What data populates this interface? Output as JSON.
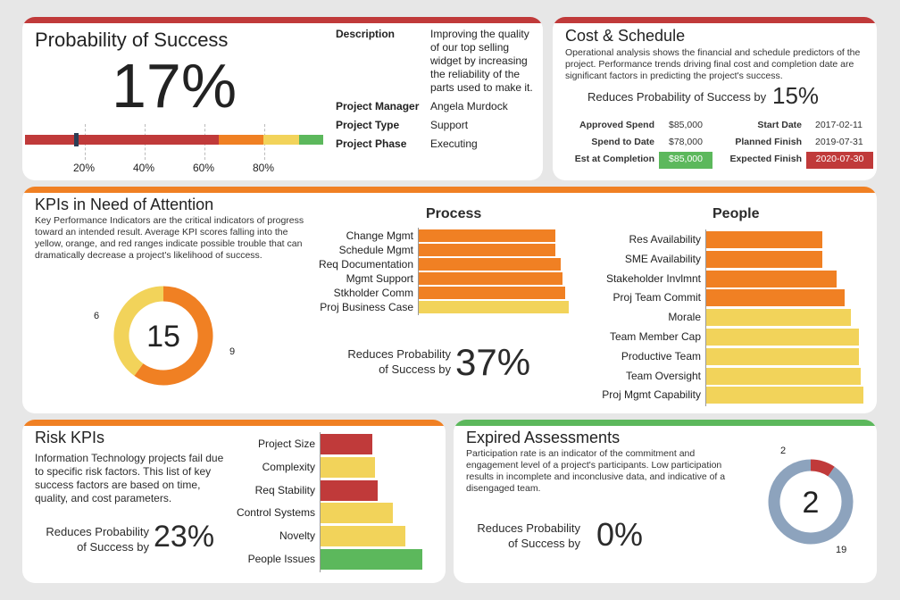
{
  "colors": {
    "red": "#c03a3a",
    "orange": "#f08023",
    "yellow": "#f2d35a",
    "green": "#5cb85c",
    "slate": "#8da3bd",
    "dark": "#2c3e55"
  },
  "probability": {
    "title": "Probability of Success",
    "value": "17%",
    "marker_value": 17,
    "scale_ticks": [
      "20%",
      "40%",
      "60%",
      "80%"
    ],
    "segments": [
      {
        "color": "red",
        "from": 0,
        "to": 65
      },
      {
        "color": "orange",
        "from": 65,
        "to": 80
      },
      {
        "color": "yellow",
        "from": 80,
        "to": 92
      },
      {
        "color": "green",
        "from": 92,
        "to": 100
      }
    ],
    "details": [
      {
        "label": "Description",
        "value": "Improving the quality of our top selling widget by increasing the reliability of the parts used to make it."
      },
      {
        "label": "Project Manager",
        "value": "Angela Murdock"
      },
      {
        "label": "Project Type",
        "value": "Support"
      },
      {
        "label": "Project Phase",
        "value": "Executing"
      }
    ]
  },
  "cost": {
    "title": "Cost & Schedule",
    "desc": "Operational analysis shows the financial and schedule predictors of the project. Performance trends driving final cost and completion date are significant factors in predicting the project's success.",
    "reduces_label": "Reduces Probability of Success by",
    "reduces_value": "15%",
    "rows": [
      {
        "label": "Approved Spend",
        "value": "$85,000",
        "label2": "Start Date",
        "value2": "2017-02-11"
      },
      {
        "label": "Spend to Date",
        "value": "$78,000",
        "label2": "Planned Finish",
        "value2": "2019-07-31"
      },
      {
        "label": "Est at Completion",
        "value": "$85,000",
        "label2": "Expected Finish",
        "value2": "2020-07-30"
      }
    ]
  },
  "kpis": {
    "title": "KPIs in Need of Attention",
    "desc": "Key Performance Indicators are the critical indicators of progress toward an intended result. Average KPI scores falling into the yellow, orange, and red ranges indicate possible trouble that can dramatically decrease a project's likelihood of success.",
    "donut": {
      "total": "15",
      "segments": [
        {
          "label": "6",
          "value": 6,
          "color": "yellow"
        },
        {
          "label": "9",
          "value": 9,
          "color": "orange"
        }
      ]
    },
    "reduces_label_1": "Reduces Probability",
    "reduces_label_2": "of Success by",
    "reduces_value": "37%",
    "process": {
      "title": "Process",
      "items": [
        {
          "label": "Change Mgmt",
          "value": 153,
          "color": "orange"
        },
        {
          "label": "Schedule Mgmt",
          "value": 153,
          "color": "orange"
        },
        {
          "label": "Req Documentation",
          "value": 159,
          "color": "orange"
        },
        {
          "label": "Mgmt Support",
          "value": 161,
          "color": "orange"
        },
        {
          "label": "Stkholder Comm",
          "value": 164,
          "color": "orange"
        },
        {
          "label": "Proj Business Case",
          "value": 168,
          "color": "yellow"
        }
      ]
    },
    "people": {
      "title": "People",
      "items": [
        {
          "label": "Res Availability",
          "value": 130,
          "color": "orange"
        },
        {
          "label": "SME Availability",
          "value": 130,
          "color": "orange"
        },
        {
          "label": "Stakeholder Invlmnt",
          "value": 146,
          "color": "orange"
        },
        {
          "label": "Proj Team Commit",
          "value": 155,
          "color": "orange"
        },
        {
          "label": "Morale",
          "value": 162,
          "color": "yellow"
        },
        {
          "label": "Team Member Cap",
          "value": 171,
          "color": "yellow"
        },
        {
          "label": "Productive Team",
          "value": 171,
          "color": "yellow"
        },
        {
          "label": "Team Oversight",
          "value": 173,
          "color": "yellow"
        },
        {
          "label": "Proj Mgmt Capability",
          "value": 176,
          "color": "yellow"
        }
      ]
    }
  },
  "risk": {
    "title": "Risk KPIs",
    "desc": "Information Technology projects fail due to specific risk factors. This list of key success factors are based on time, quality, and cost parameters.",
    "reduces_label_1": "Reduces Probability",
    "reduces_label_2": "of Success by",
    "reduces_value": "23%",
    "items": [
      {
        "label": "Project Size",
        "value": 58,
        "color": "red"
      },
      {
        "label": "Complexity",
        "value": 61,
        "color": "yellow"
      },
      {
        "label": "Req Stability",
        "value": 64,
        "color": "red"
      },
      {
        "label": "Control Systems",
        "value": 81,
        "color": "yellow"
      },
      {
        "label": "Novelty",
        "value": 95,
        "color": "yellow"
      },
      {
        "label": "People Issues",
        "value": 114,
        "color": "green"
      }
    ]
  },
  "expired": {
    "title": "Expired Assessments",
    "desc": "Participation rate is an indicator of the commitment and engagement level of a project's participants. Low participation results in incomplete and inconclusive data, and indicative of a disengaged team.",
    "reduces_label_1": "Reduces Probability",
    "reduces_label_2": "of Success by",
    "reduces_value": "0%",
    "donut": {
      "total": "2",
      "segments": [
        {
          "label": "2",
          "value": 2,
          "color": "red"
        },
        {
          "label": "19",
          "value": 19,
          "color": "slate"
        }
      ]
    }
  }
}
